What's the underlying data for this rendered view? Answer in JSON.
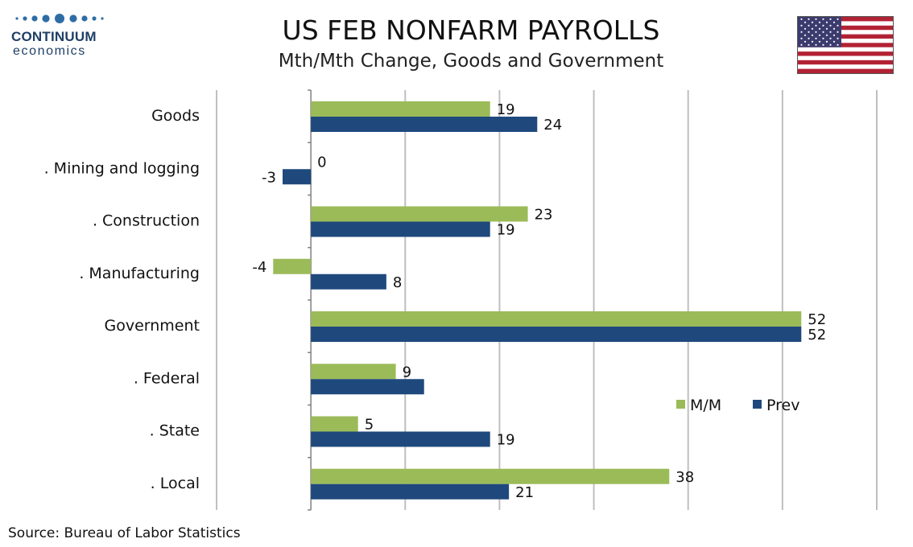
{
  "branding": {
    "name": "CONTINUUM",
    "sub": "economics"
  },
  "title": "US FEB NONFARM PAYROLLS",
  "subtitle": "Mth/Mth Change, Goods and Government",
  "source": "Source: Bureau of Labor Statistics",
  "colors": {
    "mm": "#9bbb59",
    "prev": "#1f497d",
    "grid": "#bfbfbf",
    "axis": "#808080"
  },
  "chart_data": {
    "type": "bar",
    "orientation": "horizontal",
    "title": "US FEB NONFARM PAYROLLS",
    "subtitle": "Mth/Mth Change, Goods and Government",
    "categories": [
      "Goods",
      ". Mining and logging",
      ". Construction",
      ". Manufacturing",
      "Government",
      ". Federal",
      ". State",
      ". Local"
    ],
    "series": [
      {
        "name": "M/M",
        "values": [
          19,
          0,
          23,
          -4,
          52,
          9,
          5,
          38
        ],
        "labels": [
          "19",
          "0",
          "23",
          "-4",
          "52",
          "9",
          "5",
          "38"
        ]
      },
      {
        "name": "Prev",
        "values": [
          24,
          -3,
          19,
          8,
          52,
          12,
          19,
          21
        ],
        "labels": [
          "24",
          "-3",
          "19",
          "8",
          "52",
          "",
          "19",
          "21"
        ]
      }
    ],
    "xlim": [
      -10,
      60
    ],
    "grid": true,
    "legend": "right"
  }
}
